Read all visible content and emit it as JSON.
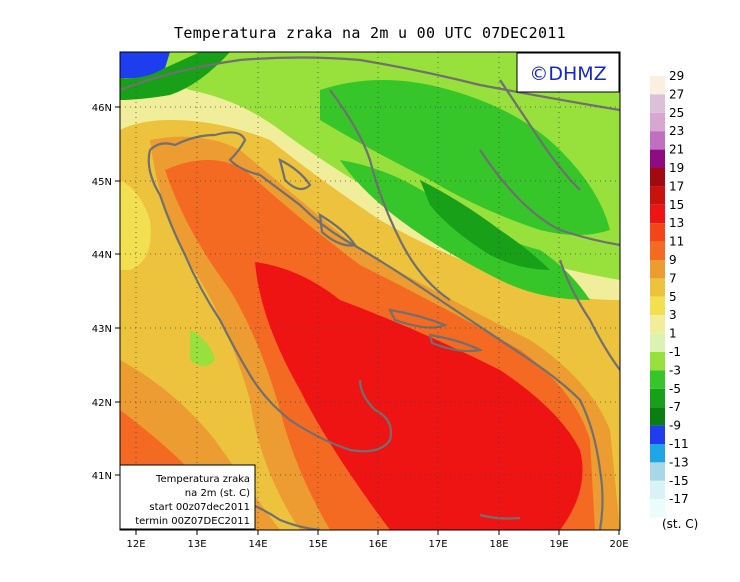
{
  "title": "Temperatura zraka na 2m u 00 UTC 07DEC2011",
  "logo": "©DHMZ",
  "info_box": {
    "line1": "Temperatura zraka",
    "line2": "na 2m (st. C)",
    "line3": "start 00z07dec2011",
    "line4": "termin 00Z07DEC2011"
  },
  "axes": {
    "lat_labels": [
      "46N",
      "45N",
      "44N",
      "43N",
      "42N",
      "41N"
    ],
    "lon_labels": [
      "12E",
      "13E",
      "14E",
      "15E",
      "16E",
      "17E",
      "18E",
      "19E",
      "20E"
    ]
  },
  "legend": {
    "unit": "(st. C)",
    "levels": [
      {
        "label": "29",
        "color": "#fbefe0"
      },
      {
        "label": "27",
        "color": "#dcc0d8"
      },
      {
        "label": "25",
        "color": "#d9a6d2"
      },
      {
        "label": "23",
        "color": "#c06fc2"
      },
      {
        "label": "21",
        "color": "#8e0c82"
      },
      {
        "label": "19",
        "color": "#a00a10"
      },
      {
        "label": "17",
        "color": "#c8120c"
      },
      {
        "label": "15",
        "color": "#ee1414"
      },
      {
        "label": "13",
        "color": "#f54418"
      },
      {
        "label": "11",
        "color": "#f46a22"
      },
      {
        "label": "9",
        "color": "#ec9c30"
      },
      {
        "label": "7",
        "color": "#edc23c"
      },
      {
        "label": "5",
        "color": "#f2e050"
      },
      {
        "label": "3",
        "color": "#f0ee9a"
      },
      {
        "label": "1",
        "color": "#dcf2b4"
      },
      {
        "label": "-1",
        "color": "#98e03c"
      },
      {
        "label": "-3",
        "color": "#36c62a"
      },
      {
        "label": "-5",
        "color": "#18a018"
      },
      {
        "label": "-7",
        "color": "#0a7e10"
      },
      {
        "label": "-9",
        "color": "#1e3cf0"
      },
      {
        "label": "-11",
        "color": "#1ea6e6"
      },
      {
        "label": "-13",
        "color": "#a8d8e8"
      },
      {
        "label": "-15",
        "color": "#d8f2f6"
      },
      {
        "label": "-17",
        "color": "#eafcfc"
      }
    ]
  }
}
